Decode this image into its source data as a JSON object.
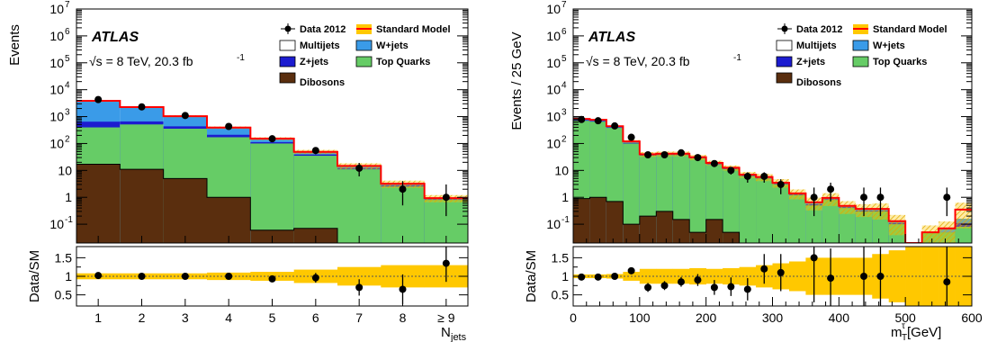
{
  "colors": {
    "multijets": "#ffffff",
    "wjets": "#3a9be8",
    "zjets": "#1c1cd0",
    "top": "#66cc66",
    "dibosons": "#5a2e0e",
    "sm_line": "#ff0000",
    "band": "#ffc800"
  },
  "chart_data": [
    {
      "type": "bar",
      "stacked": true,
      "xlabel": "N_jets",
      "ylabel": "Events",
      "ratio_ylabel": "Data/SM",
      "y_scale": "log",
      "ylim": [
        0.02,
        10000000
      ],
      "ratio_ylim": [
        0.2,
        1.8
      ],
      "categories": [
        "1",
        "2",
        "3",
        "4",
        "5",
        "6",
        "7",
        "8",
        "≥ 9"
      ],
      "series": [
        {
          "name": "Dibosons",
          "values": [
            17,
            11,
            5,
            1,
            0.06,
            0.07,
            0.0,
            0.0,
            0.0
          ]
        },
        {
          "name": "Top Quarks",
          "values": [
            380,
            500,
            350,
            170,
            100,
            35,
            11,
            2.5,
            0.8
          ]
        },
        {
          "name": "Z+jets",
          "values": [
            250,
            150,
            80,
            40,
            12,
            4,
            1.2,
            0.3,
            0.05
          ]
        },
        {
          "name": "W+jets",
          "values": [
            3200,
            1600,
            600,
            180,
            40,
            10,
            2.5,
            0.4,
            0.08
          ]
        },
        {
          "name": "Multijets",
          "values": [
            0,
            0,
            0,
            0,
            0,
            0,
            0,
            0,
            0
          ]
        }
      ],
      "standard_model": [
        3850,
        2260,
        1035,
        391,
        152,
        49,
        14.7,
        3.2,
        0.93
      ],
      "data": {
        "name": "Data 2012",
        "values": [
          4300,
          2300,
          1100,
          430,
          150,
          55,
          12,
          2,
          1
        ],
        "errors_high": [
          130,
          95,
          65,
          42,
          24,
          15,
          7,
          2,
          2
        ],
        "errors_low": [
          130,
          95,
          65,
          42,
          24,
          15,
          6,
          1.5,
          0.8
        ]
      },
      "ratio": {
        "values": [
          1.02,
          1.0,
          1.0,
          1.0,
          0.93,
          0.96,
          0.7,
          0.65,
          1.35
        ],
        "errors": [
          0.03,
          0.03,
          0.03,
          0.05,
          0.08,
          0.13,
          0.22,
          0.4,
          0.5
        ],
        "band": [
          0.08,
          0.08,
          0.08,
          0.1,
          0.12,
          0.18,
          0.25,
          0.3,
          0.3
        ]
      }
    },
    {
      "type": "bar",
      "stacked": true,
      "xlabel": "m_T^τ [GeV]",
      "ylabel": "Events / 25 GeV",
      "ratio_ylabel": "Data/SM",
      "y_scale": "log",
      "ylim": [
        0.02,
        10000000
      ],
      "xlim": [
        0,
        600
      ],
      "ratio_ylim": [
        0.2,
        1.8
      ],
      "x": [
        12.5,
        37.5,
        62.5,
        87.5,
        112.5,
        137.5,
        162.5,
        187.5,
        212.5,
        237.5,
        262.5,
        287.5,
        312.5,
        337.5,
        362.5,
        387.5,
        412.5,
        437.5,
        462.5,
        487.5,
        512.5,
        537.5,
        562.5,
        587.5
      ],
      "series": [
        {
          "name": "Dibosons",
          "values": [
            0.9,
            1.0,
            0.7,
            0.1,
            0.2,
            0.3,
            0.15,
            0.05,
            0.15,
            0.05,
            0.0,
            0.0,
            0.0,
            0.0,
            0.0,
            0.0,
            0.0,
            0.0,
            0.0,
            0.0,
            0.0,
            0.0,
            0.0,
            0.0
          ]
        },
        {
          "name": "Top Quarks",
          "values": [
            700,
            650,
            380,
            100,
            35,
            37,
            37,
            28,
            16,
            11,
            6,
            5,
            3,
            1.2,
            0.5,
            0.8,
            0.4,
            0.3,
            0.3,
            0.1,
            0.01,
            0.05,
            0.05,
            0.08
          ]
        },
        {
          "name": "Z+jets",
          "values": [
            40,
            30,
            15,
            5,
            2,
            2,
            2,
            1.5,
            1,
            0.5,
            0.4,
            0.3,
            0.2,
            0.1,
            0.05,
            0.05,
            0.03,
            0.02,
            0.02,
            0.01,
            0,
            0,
            0,
            0.03
          ]
        },
        {
          "name": "W+jets",
          "values": [
            80,
            80,
            40,
            15,
            3,
            3,
            3,
            2,
            1.5,
            1,
            0.5,
            0.4,
            0.3,
            0.1,
            0.1,
            0.1,
            0.05,
            0.05,
            0.05,
            0.02,
            0,
            0,
            0.02,
            0.05
          ]
        },
        {
          "name": "Multijets",
          "values": [
            0,
            0,
            0,
            0,
            0,
            0,
            0,
            0,
            0,
            0,
            0,
            0,
            0,
            0,
            0,
            0,
            0,
            0,
            0,
            0,
            0,
            0,
            0,
            0
          ]
        }
      ],
      "standard_model": [
        820,
        760,
        440,
        120,
        40,
        42,
        42,
        31,
        19,
        12.5,
        7,
        5.7,
        3.5,
        1.4,
        0.65,
        0.95,
        0.48,
        0.37,
        0.37,
        0.13,
        0.01,
        0.05,
        0.07,
        0.35
      ],
      "data": {
        "name": "Data 2012",
        "values": [
          780,
          700,
          450,
          170,
          38,
          38,
          45,
          30,
          18,
          10,
          6,
          6,
          3,
          0,
          1,
          2,
          0,
          1,
          1,
          0,
          0,
          0,
          1,
          0
        ],
        "errors_high": [
          28,
          26,
          21,
          13,
          6,
          6,
          7,
          5.5,
          4,
          3,
          2.5,
          2.5,
          1.7,
          0,
          1.3,
          1.5,
          0,
          1.3,
          1.3,
          0,
          0,
          0,
          1.3,
          0
        ],
        "errors_low": [
          28,
          26,
          21,
          13,
          6,
          6,
          7,
          5.5,
          4,
          3,
          2.5,
          2.5,
          1.7,
          0,
          0.8,
          1.3,
          0,
          0.8,
          0.8,
          0,
          0,
          0,
          0.8,
          0
        ]
      },
      "ratio": {
        "values": [
          0.98,
          0.98,
          1.0,
          1.15,
          0.7,
          0.75,
          0.85,
          0.9,
          0.7,
          0.72,
          0.65,
          1.2,
          1.1,
          null,
          1.5,
          0.95,
          null,
          1.0,
          1.0,
          null,
          null,
          null,
          0.85,
          null
        ],
        "errors": [
          0.04,
          0.04,
          0.05,
          0.09,
          0.12,
          0.12,
          0.13,
          0.16,
          0.2,
          0.25,
          0.3,
          0.4,
          0.5,
          null,
          1.2,
          0.8,
          null,
          1.2,
          1.2,
          null,
          null,
          null,
          1.2,
          null
        ],
        "band": [
          0.05,
          0.05,
          0.06,
          0.12,
          0.2,
          0.2,
          0.2,
          0.22,
          0.2,
          0.22,
          0.25,
          0.3,
          0.35,
          0.4,
          0.5,
          0.5,
          0.5,
          0.5,
          0.6,
          0.7,
          0.8,
          0.8,
          0.8,
          0.8
        ]
      }
    }
  ],
  "labels": {
    "atlas": "ATLAS",
    "sqrt": "√s",
    "energy": " = 8 TeV,  20.3 fb",
    "lumi_exp": "-1",
    "legend": [
      "Data 2012",
      "Standard Model",
      "Multijets",
      "W+jets",
      "Z+jets",
      "Top Quarks",
      "Dibosons"
    ],
    "left_ylabel": "Events",
    "right_ylabel": "Events / 25 GeV",
    "ratio_ylabel": "Data/SM",
    "left_xlabel_main": "N",
    "left_xlabel_sub": "jets",
    "right_xlabel_main": "m",
    "right_xlabel_sub": "T",
    "right_xlabel_sup": "τ",
    "right_xlabel_unit": " [GeV]"
  },
  "ticks": {
    "main_y": [
      "10^-1",
      "1",
      "10",
      "10^2",
      "10^3",
      "10^4",
      "10^5",
      "10^6",
      "10^7"
    ],
    "ratio_y": [
      "0.5",
      "1",
      "1.5"
    ],
    "right_x": [
      "0",
      "100",
      "200",
      "300",
      "400",
      "500",
      "600"
    ]
  }
}
